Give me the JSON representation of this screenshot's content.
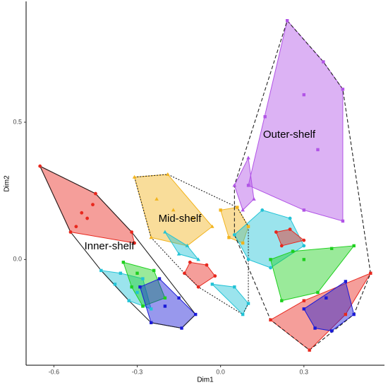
{
  "chart_data": {
    "type": "scatter-hulls",
    "xlabel": "Dim1",
    "ylabel": "Dim2",
    "xlim": [
      -0.7,
      0.59
    ],
    "ylim": [
      -0.385,
      0.94
    ],
    "xticks": [
      -0.6,
      -0.3,
      {
        "value": 0,
        "label": "0.0"
      },
      0.3
    ],
    "yticks": [
      {
        "value": 0,
        "label": "0.0"
      },
      0.5
    ],
    "grid": false,
    "groups": [
      {
        "name": "Inner-shelf",
        "line_style": "solid",
        "clusters": [
          {
            "color": "#e8281e",
            "marker": "circle",
            "x": [
              -0.65,
              -0.45,
              -0.32,
              -0.31,
              -0.54,
              -0.5,
              -0.48,
              -0.46,
              -0.52
            ],
            "y": [
              0.34,
              0.24,
              0.1,
              0.06,
              0.1,
              0.17,
              0.15,
              0.2,
              0.12
            ]
          },
          {
            "color": "#22c3d6",
            "marker": "square",
            "x": [
              -0.43,
              -0.36,
              -0.3,
              -0.25,
              -0.33,
              -0.38,
              -0.28
            ],
            "y": [
              -0.04,
              -0.05,
              -0.12,
              -0.18,
              -0.15,
              -0.09,
              -0.07
            ]
          },
          {
            "color": "#1ed01e",
            "marker": "square",
            "x": [
              -0.35,
              -0.3,
              -0.24,
              -0.2,
              -0.28,
              -0.32
            ],
            "y": [
              -0.01,
              -0.05,
              -0.04,
              -0.14,
              -0.17,
              -0.1
            ]
          },
          {
            "color": "#1a1ad8",
            "marker": "square",
            "x": [
              -0.29,
              -0.22,
              -0.15,
              -0.09,
              -0.14,
              -0.25,
              -0.2
            ],
            "y": [
              -0.1,
              -0.07,
              -0.14,
              -0.2,
              -0.25,
              -0.23,
              -0.17
            ]
          }
        ]
      },
      {
        "name": "Mid-shelf",
        "line_style": "dotted",
        "clusters": [
          {
            "color": "#f2b41e",
            "marker": "triangle",
            "x": [
              -0.31,
              -0.19,
              -0.23,
              -0.1,
              -0.03,
              -0.12,
              -0.25,
              -0.17
            ],
            "y": [
              0.3,
              0.31,
              0.22,
              0.15,
              0.12,
              0.05,
              0.08,
              0.18
            ]
          },
          {
            "color": "#f2b41e",
            "marker": "square",
            "x": [
              0.0,
              0.06,
              0.1,
              0.08,
              0.03
            ],
            "y": [
              0.18,
              0.19,
              0.12,
              0.06,
              0.08
            ]
          },
          {
            "color": "#e8281e",
            "marker": "circle",
            "x": [
              -0.11,
              -0.05,
              -0.02,
              -0.08,
              -0.13
            ],
            "y": [
              -0.01,
              -0.02,
              -0.06,
              -0.1,
              -0.05
            ]
          },
          {
            "color": "#22c3d6",
            "marker": "triangle",
            "x": [
              -0.2,
              -0.12,
              -0.08,
              -0.15
            ],
            "y": [
              0.1,
              0.05,
              0.0,
              0.02
            ]
          },
          {
            "color": "#22c3d6",
            "marker": "square",
            "x": [
              -0.03,
              0.05,
              0.1,
              0.08
            ],
            "y": [
              -0.09,
              -0.1,
              -0.16,
              -0.2
            ]
          }
        ]
      },
      {
        "name": "Outer-shelf",
        "line_style": "dashed",
        "clusters": [
          {
            "color": "#b154e6",
            "marker": "square",
            "x": [
              0.24,
              0.37,
              0.44,
              0.44,
              0.3,
              0.1,
              0.16,
              0.3,
              0.35
            ],
            "y": [
              0.87,
              0.72,
              0.62,
              0.14,
              0.18,
              0.27,
              0.52,
              0.6,
              0.4
            ]
          },
          {
            "color": "#b154e6",
            "marker": "triangle",
            "x": [
              0.05,
              0.1,
              0.12,
              0.08
            ],
            "y": [
              0.27,
              0.37,
              0.22,
              0.18
            ]
          },
          {
            "color": "#22c3d6",
            "marker": "circle",
            "x": [
              0.05,
              0.15,
              0.25,
              0.3,
              0.18,
              0.1
            ],
            "y": [
              0.09,
              0.18,
              0.15,
              0.05,
              -0.03,
              0.0
            ]
          },
          {
            "color": "#1ed01e",
            "marker": "square",
            "x": [
              0.18,
              0.26,
              0.3,
              0.4,
              0.48,
              0.35,
              0.22
            ],
            "y": [
              0.0,
              0.03,
              0.0,
              0.04,
              0.05,
              -0.12,
              -0.15
            ]
          },
          {
            "color": "#e8281e",
            "marker": "square",
            "x": [
              0.18,
              0.3,
              0.45,
              0.54,
              0.32
            ],
            "y": [
              -0.22,
              -0.15,
              -0.2,
              -0.05,
              -0.33
            ]
          },
          {
            "color": "#1a1ad8",
            "marker": "square",
            "x": [
              0.3,
              0.38,
              0.45,
              0.48,
              0.4,
              0.34
            ],
            "y": [
              -0.18,
              -0.14,
              -0.08,
              -0.2,
              -0.26,
              -0.25
            ]
          },
          {
            "color": "#e8281e",
            "marker": "circle",
            "x": [
              0.2,
              0.25,
              0.3,
              0.22
            ],
            "y": [
              0.1,
              0.11,
              0.07,
              0.05
            ]
          }
        ]
      }
    ]
  }
}
